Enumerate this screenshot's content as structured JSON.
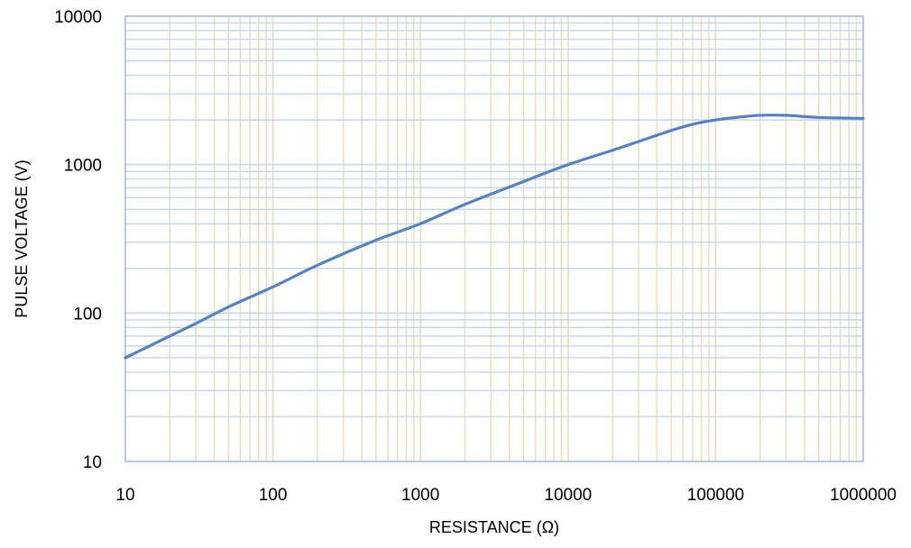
{
  "chart_data": {
    "type": "line",
    "xlabel": "RESISTANCE (Ω)",
    "ylabel": "PULSE VOLTAGE (V)",
    "x_scale": "log",
    "y_scale": "log",
    "xlim": [
      10,
      1000000
    ],
    "ylim": [
      10,
      10000
    ],
    "x_tick_labels": [
      "10",
      "100",
      "1000",
      "10000",
      "100000",
      "1000000"
    ],
    "y_tick_labels": [
      "10",
      "100",
      "1000",
      "10000"
    ],
    "grid": true,
    "legend": "none",
    "series": [
      {
        "x": [
          10,
          20,
          30,
          50,
          100,
          200,
          500,
          1000,
          2000,
          5000,
          10000,
          20000,
          30000,
          50000,
          70000,
          100000,
          150000,
          200000,
          300000,
          500000,
          1000000
        ],
        "y": [
          50,
          70,
          85,
          110,
          150,
          210,
          310,
          400,
          540,
          770,
          1000,
          1250,
          1430,
          1700,
          1870,
          2000,
          2100,
          2150,
          2150,
          2080,
          2050
        ]
      }
    ]
  },
  "colors": {
    "line": "#5683c0",
    "grid_horizontal": "#c9d8e9",
    "grid_vertical": "#e6dfc2",
    "frame": "#a7bcd8"
  }
}
